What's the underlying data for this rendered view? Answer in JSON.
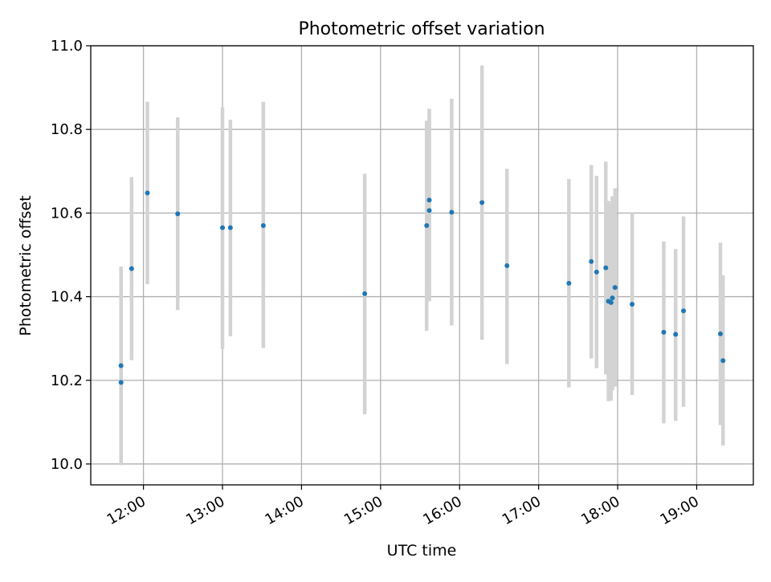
{
  "chart_data": {
    "type": "scatter",
    "title": "Photometric offset variation",
    "xlabel": "UTC time",
    "ylabel": "Photometric offset",
    "xlim": [
      "11:20",
      "19:43"
    ],
    "ylim": [
      9.95,
      11.0
    ],
    "grid": true,
    "x_ticks": [
      "12:00",
      "13:00",
      "14:00",
      "15:00",
      "16:00",
      "17:00",
      "18:00",
      "19:00"
    ],
    "y_ticks": [
      "10.0",
      "10.2",
      "10.4",
      "10.6",
      "10.8",
      "11.0"
    ],
    "colors": {
      "point": "#1f77b4",
      "errorbar": "#d3d3d3",
      "grid": "#b0b0b0"
    },
    "points": [
      {
        "x": "11:43",
        "y": 10.235,
        "err_low": 9.997,
        "err_high": 10.472
      },
      {
        "x": "11:43",
        "y": 10.195,
        "err_low": 9.997,
        "err_high": 10.472
      },
      {
        "x": "11:51",
        "y": 10.467,
        "err_low": 10.248,
        "err_high": 10.686
      },
      {
        "x": "12:03",
        "y": 10.648,
        "err_low": 10.43,
        "err_high": 10.866
      },
      {
        "x": "12:26",
        "y": 10.598,
        "err_low": 10.368,
        "err_high": 10.829
      },
      {
        "x": "13:00",
        "y": 10.565,
        "err_low": 10.275,
        "err_high": 10.853
      },
      {
        "x": "13:06",
        "y": 10.565,
        "err_low": 10.305,
        "err_high": 10.823
      },
      {
        "x": "13:31",
        "y": 10.57,
        "err_low": 10.277,
        "err_high": 10.866
      },
      {
        "x": "14:48",
        "y": 10.407,
        "err_low": 10.119,
        "err_high": 10.694
      },
      {
        "x": "15:35",
        "y": 10.57,
        "err_low": 10.318,
        "err_high": 10.821
      },
      {
        "x": "15:37",
        "y": 10.631,
        "err_low": 10.389,
        "err_high": 10.849
      },
      {
        "x": "15:37",
        "y": 10.606,
        "err_low": 10.389,
        "err_high": 10.849
      },
      {
        "x": "15:54",
        "y": 10.602,
        "err_low": 10.331,
        "err_high": 10.873
      },
      {
        "x": "16:17",
        "y": 10.625,
        "err_low": 10.297,
        "err_high": 10.953
      },
      {
        "x": "16:36",
        "y": 10.474,
        "err_low": 10.239,
        "err_high": 10.706
      },
      {
        "x": "17:23",
        "y": 10.432,
        "err_low": 10.183,
        "err_high": 10.681
      },
      {
        "x": "17:40",
        "y": 10.484,
        "err_low": 10.252,
        "err_high": 10.715
      },
      {
        "x": "17:44",
        "y": 10.459,
        "err_low": 10.229,
        "err_high": 10.689
      },
      {
        "x": "17:51",
        "y": 10.469,
        "err_low": 10.214,
        "err_high": 10.723
      },
      {
        "x": "17:53",
        "y": 10.389,
        "err_low": 10.15,
        "err_high": 10.629
      },
      {
        "x": "17:55",
        "y": 10.386,
        "err_low": 10.151,
        "err_high": 10.622
      },
      {
        "x": "17:56",
        "y": 10.397,
        "err_low": 10.176,
        "err_high": 10.64
      },
      {
        "x": "17:58",
        "y": 10.422,
        "err_low": 10.185,
        "err_high": 10.659
      },
      {
        "x": "18:11",
        "y": 10.382,
        "err_low": 10.165,
        "err_high": 10.6
      },
      {
        "x": "18:35",
        "y": 10.315,
        "err_low": 10.097,
        "err_high": 10.532
      },
      {
        "x": "18:44",
        "y": 10.31,
        "err_low": 10.103,
        "err_high": 10.514
      },
      {
        "x": "18:50",
        "y": 10.366,
        "err_low": 10.137,
        "err_high": 10.592
      },
      {
        "x": "19:18",
        "y": 10.311,
        "err_low": 10.093,
        "err_high": 10.529
      },
      {
        "x": "19:20",
        "y": 10.247,
        "err_low": 10.044,
        "err_high": 10.451
      }
    ]
  }
}
